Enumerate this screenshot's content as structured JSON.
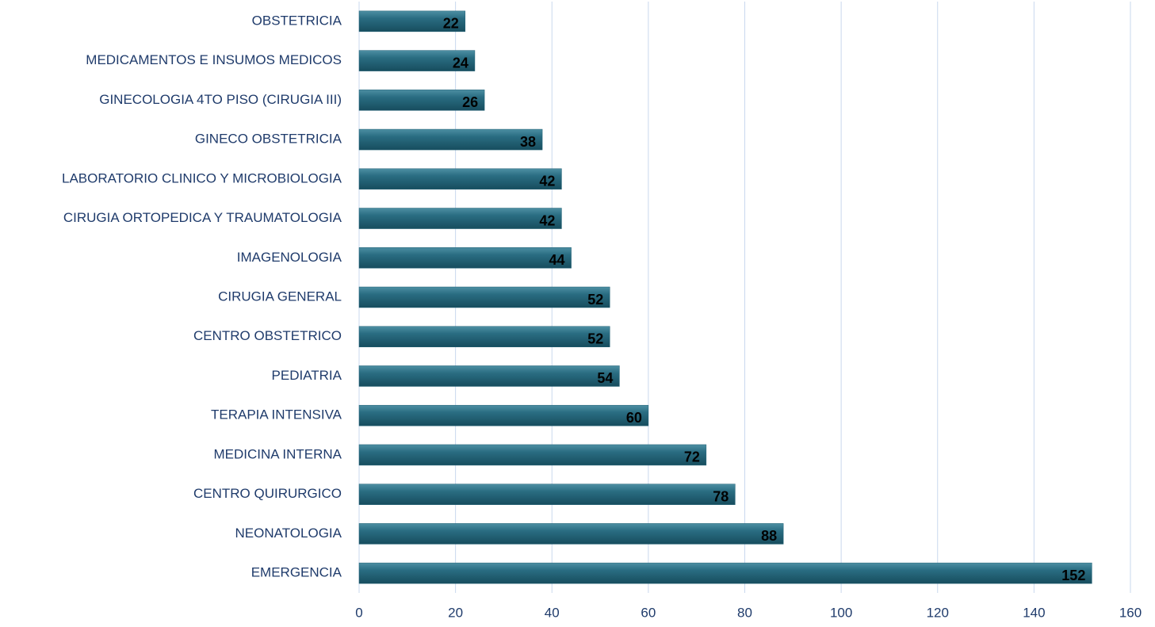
{
  "chart_data": {
    "type": "bar",
    "orientation": "horizontal",
    "categories": [
      "OBSTETRICIA",
      "MEDICAMENTOS E INSUMOS MEDICOS",
      "GINECOLOGIA 4TO PISO (CIRUGIA III)",
      "GINECO OBSTETRICIA",
      "LABORATORIO CLINICO Y MICROBIOLOGIA",
      "CIRUGIA ORTOPEDICA Y TRAUMATOLOGIA",
      "IMAGENOLOGIA",
      "CIRUGIA GENERAL",
      "CENTRO OBSTETRICO",
      "PEDIATRIA",
      "TERAPIA INTENSIVA",
      "MEDICINA INTERNA",
      "CENTRO QUIRURGICO",
      "NEONATOLOGIA",
      "EMERGENCIA"
    ],
    "values": [
      22,
      24,
      26,
      38,
      42,
      42,
      44,
      52,
      52,
      54,
      60,
      72,
      78,
      88,
      152
    ],
    "color": "#1f5f73",
    "xlim": [
      0,
      160
    ],
    "xticks": [
      0,
      20,
      40,
      60,
      80,
      100,
      120,
      140,
      160
    ],
    "grid": true
  }
}
